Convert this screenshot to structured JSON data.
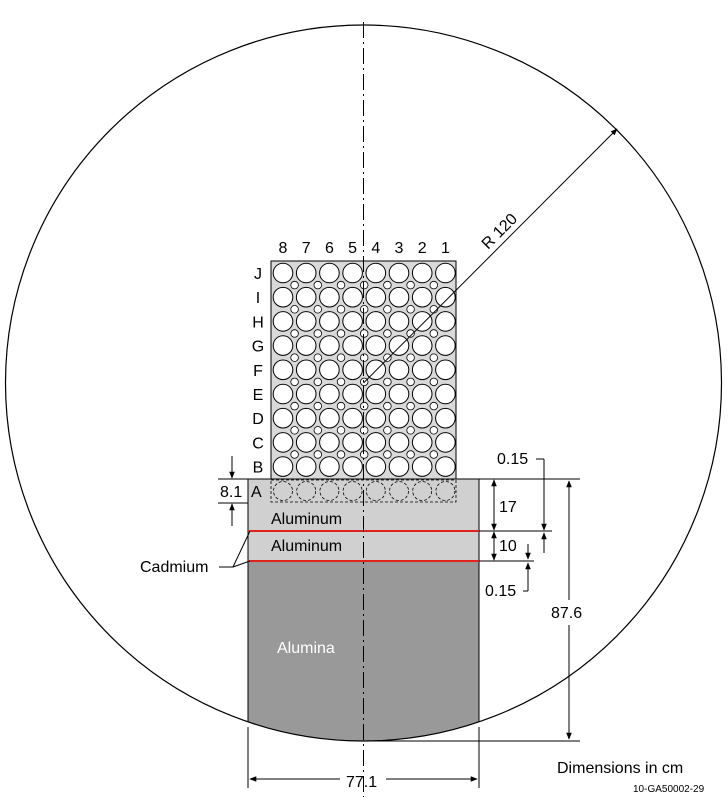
{
  "diagram": {
    "radius_label": "R 120",
    "column_labels": [
      "8",
      "7",
      "6",
      "5",
      "4",
      "3",
      "2",
      "1"
    ],
    "row_labels": [
      "J",
      "I",
      "H",
      "G",
      "F",
      "E",
      "D",
      "C",
      "B"
    ],
    "row_a_label": "A",
    "layers": {
      "aluminum_upper": "Aluminum",
      "aluminum_lower": "Aluminum",
      "alumina": "Alumina",
      "cadmium": "Cadmium"
    },
    "dimensions": {
      "row_a_height": "8.1",
      "cadmium_top": "0.15",
      "aluminum_17": "17",
      "aluminum_10": "10",
      "cadmium_bottom": "0.15",
      "total_height": "87.6",
      "width": "77.1"
    },
    "units_note": "Dimensions in cm",
    "figure_id": "10-GA50002-29",
    "colors": {
      "fuel_block": "#d9d9d9",
      "aluminum": "#d0d0d0",
      "alumina": "#999999",
      "cadmium": "#e0221f",
      "alumina_text": "#ffffff"
    }
  }
}
